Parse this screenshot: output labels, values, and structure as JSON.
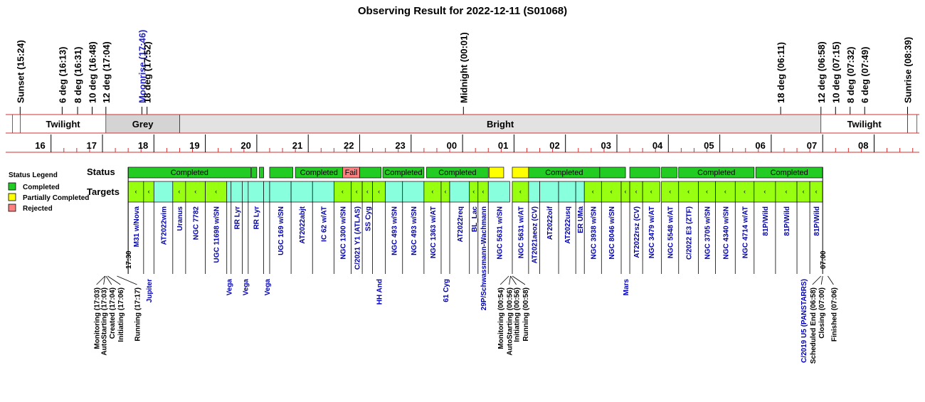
{
  "chart_data": {
    "type": "timeline",
    "title": "Observing Result for 2022-12-11 (S01068)",
    "time_axis": {
      "start": "15:15",
      "end": "08:50",
      "hour_labels": [
        "16",
        "17",
        "18",
        "19",
        "20",
        "21",
        "22",
        "23",
        "00",
        "01",
        "02",
        "03",
        "04",
        "05",
        "06",
        "07",
        "08"
      ]
    },
    "sky_events": [
      {
        "label": "Sunset (15:24)",
        "time": "15:24",
        "color": "black"
      },
      {
        "label": "6 deg (16:13)",
        "time": "16:13",
        "color": "black"
      },
      {
        "label": "8 deg (16:31)",
        "time": "16:31",
        "color": "black"
      },
      {
        "label": "10 deg (16:48)",
        "time": "16:48",
        "color": "black"
      },
      {
        "label": "12 deg (17:04)",
        "time": "17:04",
        "color": "black"
      },
      {
        "label": "Moonrise (17:46)",
        "time": "17:46",
        "color": "blue"
      },
      {
        "label": "18 deg (17:52)",
        "time": "17:52",
        "color": "black"
      },
      {
        "label": "Midnight (00:01)",
        "time": "00:01",
        "color": "black"
      },
      {
        "label": "18 deg (06:11)",
        "time": "06:11",
        "color": "black"
      },
      {
        "label": "12 deg (06:58)",
        "time": "06:58",
        "color": "black"
      },
      {
        "label": "10 deg (07:15)",
        "time": "07:15",
        "color": "black"
      },
      {
        "label": "8 deg (07:32)",
        "time": "07:32",
        "color": "black"
      },
      {
        "label": "6 deg (07:49)",
        "time": "07:49",
        "color": "black"
      },
      {
        "label": "Sunrise (08:39)",
        "time": "08:39",
        "color": "black"
      }
    ],
    "bands": [
      {
        "label": "",
        "start": "15:15",
        "end": "15:24",
        "fill": "#ffffff"
      },
      {
        "label": "Twilight",
        "start": "15:24",
        "end": "17:04",
        "fill": "#ffffff"
      },
      {
        "label": "Grey",
        "start": "17:04",
        "end": "18:30",
        "fill": "#d4d4d4"
      },
      {
        "label": "Bright",
        "start": "18:30",
        "end": "06:58",
        "fill": "#e2e2e2"
      },
      {
        "label": "Twilight",
        "start": "06:58",
        "end": "08:39",
        "fill": "#ffffff"
      },
      {
        "label": "",
        "start": "08:39",
        "end": "08:50",
        "fill": "#ffffff"
      }
    ],
    "legend": {
      "title": "Status Legend",
      "items": [
        {
          "label": "Completed",
          "color": "#22cc22"
        },
        {
          "label": "Partially Completed",
          "color": "#ffff00"
        },
        {
          "label": "Rejected",
          "color": "#ff8080"
        }
      ]
    },
    "row_labels": {
      "status": "Status",
      "targets": "Targets"
    },
    "status_blocks": [
      {
        "label": "Completed",
        "start": "17:30",
        "end": "19:53",
        "status": "completed"
      },
      {
        "label": "",
        "start": "19:54",
        "end": "20:00",
        "status": "completed"
      },
      {
        "label": "",
        "start": "20:03",
        "end": "20:08",
        "status": "completed"
      },
      {
        "label": "",
        "start": "20:15",
        "end": "20:42",
        "status": "completed"
      },
      {
        "label": "Completed",
        "start": "20:45",
        "end": "21:40",
        "status": "completed"
      },
      {
        "label": "Fail",
        "start": "21:40",
        "end": "22:00",
        "status": "rejected"
      },
      {
        "label": "",
        "start": "22:00",
        "end": "22:25",
        "status": "completed"
      },
      {
        "label": "Completed",
        "start": "22:27",
        "end": "23:15",
        "status": "completed"
      },
      {
        "label": "Completed",
        "start": "23:18",
        "end": "00:30",
        "status": "completed"
      },
      {
        "label": "",
        "start": "00:31",
        "end": "00:48",
        "status": "partial"
      },
      {
        "label": "",
        "start": "00:58",
        "end": "01:17",
        "status": "partial"
      },
      {
        "label": "Completed",
        "start": "01:17",
        "end": "02:40",
        "status": "completed"
      },
      {
        "label": "",
        "start": "02:40",
        "end": "03:10",
        "status": "completed"
      },
      {
        "label": "",
        "start": "03:15",
        "end": "03:50",
        "status": "completed"
      },
      {
        "label": "",
        "start": "03:52",
        "end": "04:10",
        "status": "completed"
      },
      {
        "label": "Completed",
        "start": "04:12",
        "end": "05:40",
        "status": "completed"
      },
      {
        "label": "Completed",
        "start": "05:42",
        "end": "07:00",
        "status": "completed"
      }
    ],
    "targets": [
      {
        "name": "M31 w/Nova",
        "object": "",
        "start": "17:30",
        "end": "17:48",
        "kind": "sym"
      },
      {
        "name": "",
        "object": "Jupiter",
        "start": "17:48",
        "end": "18:00",
        "kind": "sym"
      },
      {
        "name": "AT2022wim",
        "object": "",
        "start": "18:00",
        "end": "18:22",
        "kind": "plain"
      },
      {
        "name": "Uranus",
        "object": "",
        "start": "18:22",
        "end": "18:37",
        "kind": "sym"
      },
      {
        "name": "NGC 7782",
        "object": "",
        "start": "18:37",
        "end": "19:00",
        "kind": "sym"
      },
      {
        "name": "UGC 11698 w/SN",
        "object": "",
        "start": "19:00",
        "end": "19:25",
        "kind": "sym"
      },
      {
        "name": "",
        "object": "Vega",
        "start": "19:25",
        "end": "19:30",
        "kind": "plain"
      },
      {
        "name": "RR Lyr",
        "object": "",
        "start": "19:30",
        "end": "19:43",
        "kind": "plain"
      },
      {
        "name": "",
        "object": "Vega",
        "start": "19:43",
        "end": "19:50",
        "kind": "plain"
      },
      {
        "name": "RR Lyr",
        "object": "",
        "start": "19:50",
        "end": "20:08",
        "kind": "plain"
      },
      {
        "name": "",
        "object": "Vega",
        "start": "20:08",
        "end": "20:15",
        "kind": "plain"
      },
      {
        "name": "UGC 169 w/SN",
        "object": "",
        "start": "20:15",
        "end": "20:40",
        "kind": "plain"
      },
      {
        "name": "AT2022abjt",
        "object": "",
        "start": "20:40",
        "end": "21:05",
        "kind": "plain"
      },
      {
        "name": "IC 62 w/AT",
        "object": "",
        "start": "21:05",
        "end": "21:30",
        "kind": "plain"
      },
      {
        "name": "NGC 1300 w/SN",
        "object": "",
        "start": "21:30",
        "end": "21:50",
        "kind": "sym"
      },
      {
        "name": "C/2021 Y1 (ATLAS)",
        "object": "",
        "start": "21:50",
        "end": "22:03",
        "kind": "sym"
      },
      {
        "name": "SS Cyg",
        "object": "",
        "start": "22:03",
        "end": "22:15",
        "kind": "sym"
      },
      {
        "name": "",
        "object": "HH And",
        "start": "22:15",
        "end": "22:30",
        "kind": "sym"
      },
      {
        "name": "NGC 493 w/SN",
        "object": "",
        "start": "22:30",
        "end": "22:50",
        "kind": "plain"
      },
      {
        "name": "NGC 493 w/SN",
        "object": "",
        "start": "22:50",
        "end": "23:15",
        "kind": "plain"
      },
      {
        "name": "NGC 1363 w/AT",
        "object": "",
        "start": "23:15",
        "end": "23:35",
        "kind": "sym"
      },
      {
        "name": "",
        "object": "61 Cyg",
        "start": "23:35",
        "end": "23:45",
        "kind": "sym"
      },
      {
        "name": "AT2022req",
        "object": "",
        "start": "23:45",
        "end": "00:08",
        "kind": "plain"
      },
      {
        "name": "BL_Lac",
        "object": "",
        "start": "00:08",
        "end": "00:18",
        "kind": "sym"
      },
      {
        "name": "29P/Schwassmann-Wachmann",
        "object": "",
        "start": "00:18",
        "end": "00:30",
        "kind": "sym"
      },
      {
        "name": "NGC 5631 w/SN",
        "object": "",
        "start": "00:30",
        "end": "00:55",
        "kind": "plain"
      },
      {
        "name": "NGC 5631 w/AT",
        "object": "",
        "start": "00:58",
        "end": "01:17",
        "kind": "sym"
      },
      {
        "name": "AT2021aeoz (CV)",
        "object": "",
        "start": "01:17",
        "end": "01:30",
        "kind": "plain"
      },
      {
        "name": "AT2022oif",
        "object": "",
        "start": "01:30",
        "end": "01:52",
        "kind": "plain"
      },
      {
        "name": "AT2022usq",
        "object": "",
        "start": "01:52",
        "end": "02:12",
        "kind": "plain"
      },
      {
        "name": "ER UMa",
        "object": "",
        "start": "02:12",
        "end": "02:22",
        "kind": "plain"
      },
      {
        "name": "NGC 3938 w/SN",
        "object": "",
        "start": "02:22",
        "end": "02:42",
        "kind": "sym"
      },
      {
        "name": "NGC 8046 w/SN",
        "object": "",
        "start": "02:42",
        "end": "03:05",
        "kind": "sym"
      },
      {
        "name": "",
        "object": "Mars",
        "start": "03:05",
        "end": "03:15",
        "kind": "sym"
      },
      {
        "name": "AT2022rsz (CV)",
        "object": "",
        "start": "03:15",
        "end": "03:30",
        "kind": "sym"
      },
      {
        "name": "NGC 3479 w/AT",
        "object": "",
        "start": "03:30",
        "end": "03:50",
        "kind": "sym"
      },
      {
        "name": "NGC 5548 w/AT",
        "object": "",
        "start": "03:52",
        "end": "04:12",
        "kind": "sym"
      },
      {
        "name": "C/2022 E3 (ZTF)",
        "object": "",
        "start": "04:12",
        "end": "04:35",
        "kind": "sym"
      },
      {
        "name": "NGC 3705 w/SN",
        "object": "",
        "start": "04:35",
        "end": "04:55",
        "kind": "sym"
      },
      {
        "name": "NGC 4340 w/SN",
        "object": "",
        "start": "04:55",
        "end": "05:18",
        "kind": "sym"
      },
      {
        "name": "NGC 4714 w/AT",
        "object": "",
        "start": "05:18",
        "end": "05:40",
        "kind": "sym"
      },
      {
        "name": "81P/Wild",
        "object": "",
        "start": "05:40",
        "end": "06:05",
        "kind": "sym"
      },
      {
        "name": "81P/Wild",
        "object": "",
        "start": "06:05",
        "end": "06:30",
        "kind": "sym"
      },
      {
        "name": "",
        "object": "C/2019 U5 (PANSTARRS)",
        "start": "06:30",
        "end": "06:45",
        "kind": "sym"
      },
      {
        "name": "81P/Wild",
        "object": "",
        "start": "06:45",
        "end": "07:00",
        "kind": "sym"
      }
    ],
    "window_marks": [
      {
        "label": "17:30",
        "time": "17:30"
      },
      {
        "label": "07:00",
        "time": "07:00"
      }
    ],
    "system_events": [
      {
        "label": "Monitoring (17:03)",
        "time": "17:03"
      },
      {
        "label": "AutoStarting (17:03)",
        "time": "17:03"
      },
      {
        "label": "Created (17:04)",
        "time": "17:04"
      },
      {
        "label": "Initiating (17:06)",
        "time": "17:06"
      },
      {
        "label": "Running (17:17)",
        "time": "17:17"
      },
      {
        "label": "Monitoring (00:54)",
        "time": "00:54"
      },
      {
        "label": "AutoStarting (00:56)",
        "time": "00:56"
      },
      {
        "label": "Initiating (00:56)",
        "time": "00:56"
      },
      {
        "label": "Running (00:58)",
        "time": "00:58"
      },
      {
        "label": "Scheduled End (06:58)",
        "time": "06:58"
      },
      {
        "label": "Closing (07:00)",
        "time": "07:00"
      },
      {
        "label": "Finished (07:06)",
        "time": "07:06"
      }
    ]
  }
}
